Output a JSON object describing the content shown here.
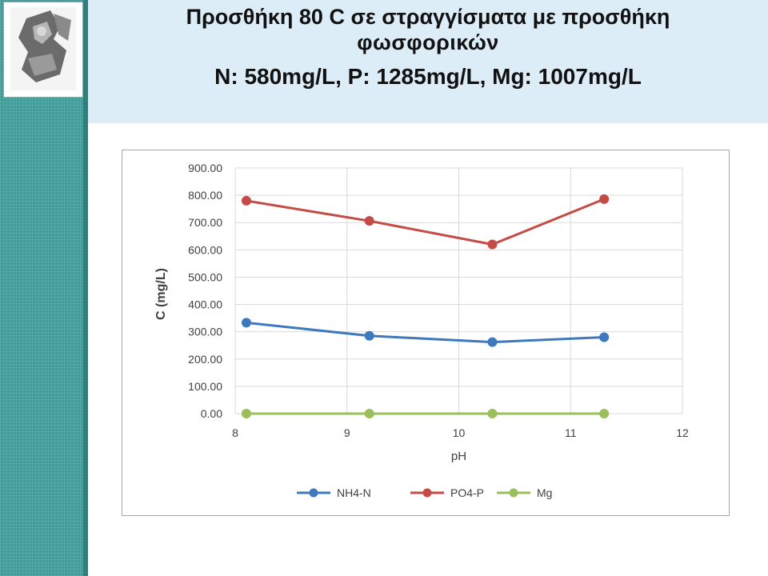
{
  "slide": {
    "title_line1": "Προσθήκη 80 C σε στραγγίσματα με προσθήκη",
    "title_line2": "φωσφορικών",
    "subtitle": "N: 580mg/L, P: 1285mg/L, Mg: 1007mg/L"
  },
  "logo": {
    "icon": "university-emblem-icon"
  },
  "colors": {
    "band": "#3f9c98",
    "title_background": "#dcedf7",
    "nh4": "#3e78bd",
    "po4": "#c44b46",
    "mg": "#9bbf5a",
    "grid": "#d9d9d9"
  },
  "chart_data": {
    "type": "line",
    "xlabel": "pH",
    "ylabel": "C (mg/L)",
    "xlim": [
      8,
      12
    ],
    "ylim": [
      0,
      900
    ],
    "xticks": [
      "8",
      "9",
      "10",
      "11",
      "12"
    ],
    "yticks": [
      "0.00",
      "100.00",
      "200.00",
      "300.00",
      "400.00",
      "500.00",
      "600.00",
      "700.00",
      "800.00",
      "900.00"
    ],
    "grid": true,
    "legend_position": "bottom",
    "x": [
      8.1,
      9.2,
      10.3,
      11.3
    ],
    "series": [
      {
        "name": "NH4-N",
        "color": "#3e78bd",
        "values": [
          333,
          285,
          262,
          280
        ]
      },
      {
        "name": "PO4-P",
        "color": "#c44b46",
        "values": [
          780,
          706,
          620,
          786
        ]
      },
      {
        "name": "Mg",
        "color": "#9bbf5a",
        "values": [
          0,
          0,
          0,
          0
        ]
      }
    ]
  }
}
